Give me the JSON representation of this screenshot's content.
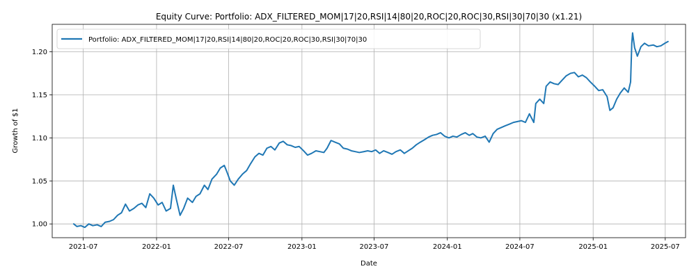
{
  "chart_data": {
    "type": "line",
    "title": "Equity Curve: Portfolio: ADX_FILTERED_MOM|17|20,RSI|14|80|20,ROC|20,ROC|30,RSI|30|70|30 (x1.21)",
    "xlabel": "Date",
    "ylabel": "Growth of $1",
    "xlim": [
      "2021-04-14",
      "2025-08-21"
    ],
    "ylim": [
      0.984,
      1.232
    ],
    "grid": true,
    "legend_position": "upper-left",
    "x_ticks": [
      "2021-07-01",
      "2022-01-01",
      "2022-07-01",
      "2023-01-01",
      "2023-07-01",
      "2024-01-01",
      "2024-07-01",
      "2025-01-01",
      "2025-07-01"
    ],
    "x_tick_labels": [
      "2021-07",
      "2022-01",
      "2022-07",
      "2023-01",
      "2023-07",
      "2024-01",
      "2024-07",
      "2025-01",
      "2025-07"
    ],
    "y_ticks": [
      1.0,
      1.05,
      1.1,
      1.15,
      1.2
    ],
    "y_tick_labels": [
      "1.00",
      "1.05",
      "1.10",
      "1.15",
      "1.20"
    ],
    "series": [
      {
        "name": "Portfolio: ADX_FILTERED_MOM|17|20,RSI|14|80|20,ROC|20,ROC|30,RSI|30|70|30",
        "color": "#1f77b4",
        "points": [
          [
            "2021-06-07",
            1.0
          ],
          [
            "2021-06-15",
            0.997
          ],
          [
            "2021-06-25",
            0.998
          ],
          [
            "2021-07-05",
            0.996
          ],
          [
            "2021-07-15",
            1.0
          ],
          [
            "2021-07-25",
            0.998
          ],
          [
            "2021-08-05",
            0.999
          ],
          [
            "2021-08-15",
            0.997
          ],
          [
            "2021-08-25",
            1.002
          ],
          [
            "2021-09-05",
            1.003
          ],
          [
            "2021-09-15",
            1.005
          ],
          [
            "2021-09-25",
            1.01
          ],
          [
            "2021-10-05",
            1.013
          ],
          [
            "2021-10-15",
            1.023
          ],
          [
            "2021-10-25",
            1.015
          ],
          [
            "2021-11-05",
            1.018
          ],
          [
            "2021-11-15",
            1.022
          ],
          [
            "2021-11-25",
            1.024
          ],
          [
            "2021-12-05",
            1.019
          ],
          [
            "2021-12-15",
            1.035
          ],
          [
            "2021-12-25",
            1.03
          ],
          [
            "2022-01-05",
            1.022
          ],
          [
            "2022-01-15",
            1.025
          ],
          [
            "2022-01-25",
            1.015
          ],
          [
            "2022-02-05",
            1.018
          ],
          [
            "2022-02-12",
            1.045
          ],
          [
            "2022-02-20",
            1.028
          ],
          [
            "2022-03-01",
            1.01
          ],
          [
            "2022-03-10",
            1.018
          ],
          [
            "2022-03-20",
            1.03
          ],
          [
            "2022-04-01",
            1.025
          ],
          [
            "2022-04-10",
            1.032
          ],
          [
            "2022-04-20",
            1.035
          ],
          [
            "2022-05-01",
            1.045
          ],
          [
            "2022-05-10",
            1.04
          ],
          [
            "2022-05-20",
            1.052
          ],
          [
            "2022-06-01",
            1.058
          ],
          [
            "2022-06-10",
            1.065
          ],
          [
            "2022-06-20",
            1.068
          ],
          [
            "2022-06-27",
            1.06
          ],
          [
            "2022-07-05",
            1.05
          ],
          [
            "2022-07-15",
            1.045
          ],
          [
            "2022-07-25",
            1.052
          ],
          [
            "2022-08-05",
            1.058
          ],
          [
            "2022-08-15",
            1.062
          ],
          [
            "2022-08-25",
            1.07
          ],
          [
            "2022-09-05",
            1.078
          ],
          [
            "2022-09-15",
            1.082
          ],
          [
            "2022-09-25",
            1.08
          ],
          [
            "2022-10-05",
            1.088
          ],
          [
            "2022-10-15",
            1.09
          ],
          [
            "2022-10-25",
            1.086
          ],
          [
            "2022-11-05",
            1.094
          ],
          [
            "2022-11-15",
            1.096
          ],
          [
            "2022-11-25",
            1.092
          ],
          [
            "2022-12-05",
            1.091
          ],
          [
            "2022-12-15",
            1.089
          ],
          [
            "2022-12-25",
            1.09
          ],
          [
            "2023-01-05",
            1.085
          ],
          [
            "2023-01-15",
            1.08
          ],
          [
            "2023-01-25",
            1.082
          ],
          [
            "2023-02-05",
            1.085
          ],
          [
            "2023-02-15",
            1.084
          ],
          [
            "2023-02-25",
            1.083
          ],
          [
            "2023-03-05",
            1.088
          ],
          [
            "2023-03-15",
            1.097
          ],
          [
            "2023-03-25",
            1.095
          ],
          [
            "2023-04-05",
            1.093
          ],
          [
            "2023-04-15",
            1.088
          ],
          [
            "2023-04-25",
            1.087
          ],
          [
            "2023-05-05",
            1.085
          ],
          [
            "2023-05-15",
            1.084
          ],
          [
            "2023-05-25",
            1.083
          ],
          [
            "2023-06-05",
            1.084
          ],
          [
            "2023-06-15",
            1.085
          ],
          [
            "2023-06-25",
            1.084
          ],
          [
            "2023-07-05",
            1.086
          ],
          [
            "2023-07-15",
            1.082
          ],
          [
            "2023-07-25",
            1.085
          ],
          [
            "2023-08-05",
            1.083
          ],
          [
            "2023-08-15",
            1.081
          ],
          [
            "2023-08-25",
            1.084
          ],
          [
            "2023-09-05",
            1.086
          ],
          [
            "2023-09-15",
            1.082
          ],
          [
            "2023-09-25",
            1.085
          ],
          [
            "2023-10-05",
            1.088
          ],
          [
            "2023-10-15",
            1.092
          ],
          [
            "2023-10-25",
            1.095
          ],
          [
            "2023-11-05",
            1.098
          ],
          [
            "2023-11-15",
            1.101
          ],
          [
            "2023-11-25",
            1.103
          ],
          [
            "2023-12-05",
            1.104
          ],
          [
            "2023-12-15",
            1.106
          ],
          [
            "2023-12-25",
            1.102
          ],
          [
            "2024-01-05",
            1.1
          ],
          [
            "2024-01-15",
            1.102
          ],
          [
            "2024-01-25",
            1.101
          ],
          [
            "2024-02-05",
            1.104
          ],
          [
            "2024-02-15",
            1.106
          ],
          [
            "2024-02-25",
            1.103
          ],
          [
            "2024-03-05",
            1.105
          ],
          [
            "2024-03-15",
            1.101
          ],
          [
            "2024-03-25",
            1.1
          ],
          [
            "2024-04-05",
            1.102
          ],
          [
            "2024-04-15",
            1.095
          ],
          [
            "2024-04-25",
            1.105
          ],
          [
            "2024-05-05",
            1.11
          ],
          [
            "2024-05-15",
            1.112
          ],
          [
            "2024-05-25",
            1.114
          ],
          [
            "2024-06-05",
            1.116
          ],
          [
            "2024-06-15",
            1.118
          ],
          [
            "2024-06-25",
            1.119
          ],
          [
            "2024-07-05",
            1.12
          ],
          [
            "2024-07-15",
            1.118
          ],
          [
            "2024-07-25",
            1.128
          ],
          [
            "2024-08-05",
            1.118
          ],
          [
            "2024-08-10",
            1.14
          ],
          [
            "2024-08-20",
            1.145
          ],
          [
            "2024-08-30",
            1.14
          ],
          [
            "2024-09-05",
            1.16
          ],
          [
            "2024-09-15",
            1.165
          ],
          [
            "2024-09-25",
            1.163
          ],
          [
            "2024-10-05",
            1.162
          ],
          [
            "2024-10-15",
            1.167
          ],
          [
            "2024-10-25",
            1.172
          ],
          [
            "2024-11-05",
            1.175
          ],
          [
            "2024-11-15",
            1.176
          ],
          [
            "2024-11-25",
            1.171
          ],
          [
            "2024-12-05",
            1.173
          ],
          [
            "2024-12-15",
            1.17
          ],
          [
            "2024-12-25",
            1.165
          ],
          [
            "2025-01-05",
            1.16
          ],
          [
            "2025-01-15",
            1.155
          ],
          [
            "2025-01-25",
            1.156
          ],
          [
            "2025-02-05",
            1.148
          ],
          [
            "2025-02-12",
            1.132
          ],
          [
            "2025-02-20",
            1.135
          ],
          [
            "2025-03-01",
            1.145
          ],
          [
            "2025-03-10",
            1.152
          ],
          [
            "2025-03-20",
            1.158
          ],
          [
            "2025-03-30",
            1.153
          ],
          [
            "2025-04-05",
            1.165
          ],
          [
            "2025-04-08",
            1.21
          ],
          [
            "2025-04-10",
            1.222
          ],
          [
            "2025-04-15",
            1.205
          ],
          [
            "2025-04-22",
            1.195
          ],
          [
            "2025-05-01",
            1.206
          ],
          [
            "2025-05-10",
            1.21
          ],
          [
            "2025-05-20",
            1.207
          ],
          [
            "2025-06-01",
            1.208
          ],
          [
            "2025-06-10",
            1.206
          ],
          [
            "2025-06-20",
            1.207
          ],
          [
            "2025-06-30",
            1.21
          ],
          [
            "2025-07-08",
            1.212
          ]
        ]
      }
    ]
  }
}
